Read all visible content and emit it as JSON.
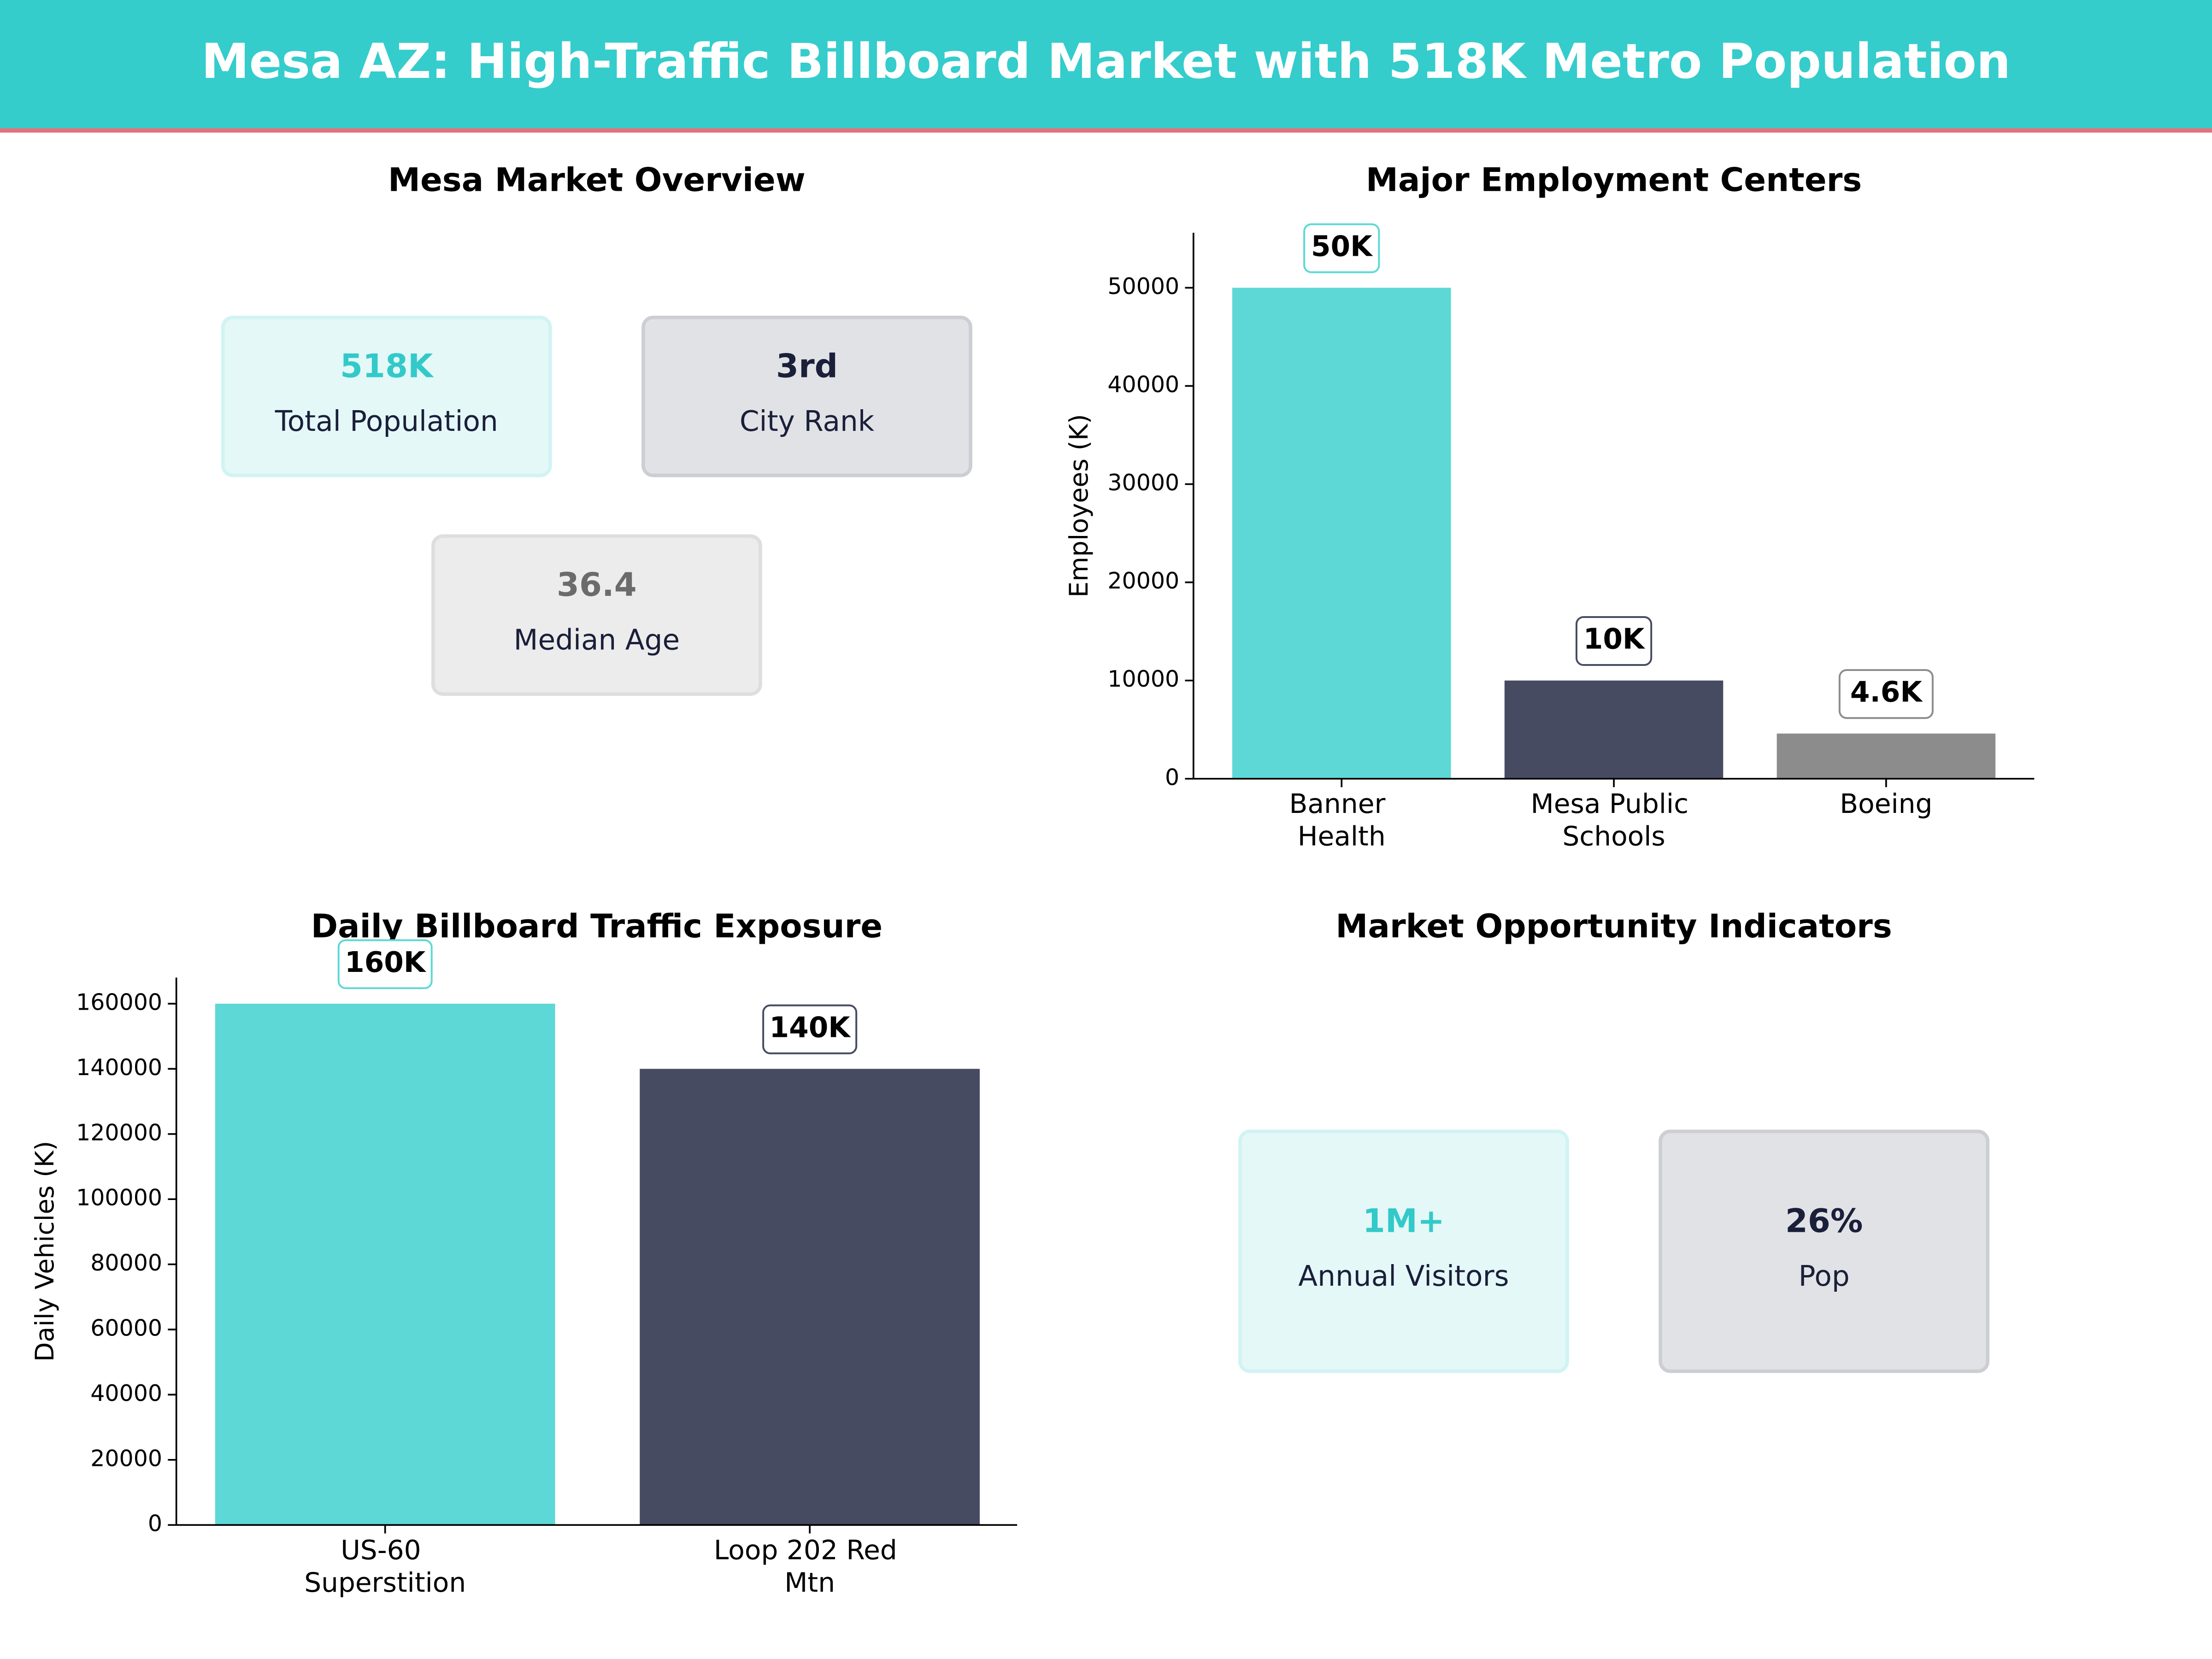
{
  "title": "Mesa AZ: High-Traffic Billboard Market with 518K Metro Population",
  "chart_data": [
    {
      "type": "cards",
      "title": "Mesa Market Overview",
      "cards": [
        {
          "value": "518K",
          "label": "Total Population",
          "color": "#33c9c9"
        },
        {
          "value": "3rd",
          "label": "City Rank",
          "color": "#1a1f3a"
        },
        {
          "value": "36.4",
          "label": "Median Age",
          "color": "#6b6b6b"
        }
      ]
    },
    {
      "type": "bar",
      "title": "Major Employment Centers",
      "ylabel": "Employees (K)",
      "categories": [
        "Banner Health",
        "Mesa Public Schools",
        "Boeing"
      ],
      "values": [
        50000,
        10000,
        4600
      ],
      "value_labels": [
        "50K",
        "10K",
        "4.6K"
      ],
      "colors": [
        "#5dd8d6",
        "#464b62",
        "#8c8c8c"
      ],
      "ylim": [
        0,
        55600
      ],
      "yticks": [
        0,
        10000,
        20000,
        30000,
        40000,
        50000
      ]
    },
    {
      "type": "bar",
      "title": "Daily Billboard Traffic Exposure",
      "ylabel": "Daily Vehicles (K)",
      "categories": [
        "US-60 Superstition",
        "Loop 202 Red Mtn"
      ],
      "values": [
        160000,
        140000
      ],
      "value_labels": [
        "160K",
        "140K"
      ],
      "colors": [
        "#5dd8d6",
        "#464b62"
      ],
      "ylim": [
        0,
        168000
      ],
      "yticks": [
        0,
        20000,
        40000,
        60000,
        80000,
        100000,
        120000,
        140000,
        160000
      ]
    },
    {
      "type": "cards",
      "title": "Market Opportunity Indicators",
      "cards": [
        {
          "value": "1M+",
          "label": "Annual Visitors",
          "color": "#33c9c9"
        },
        {
          "value": "26%",
          "label": "Pop",
          "color": "#1a1f3a"
        }
      ]
    }
  ]
}
